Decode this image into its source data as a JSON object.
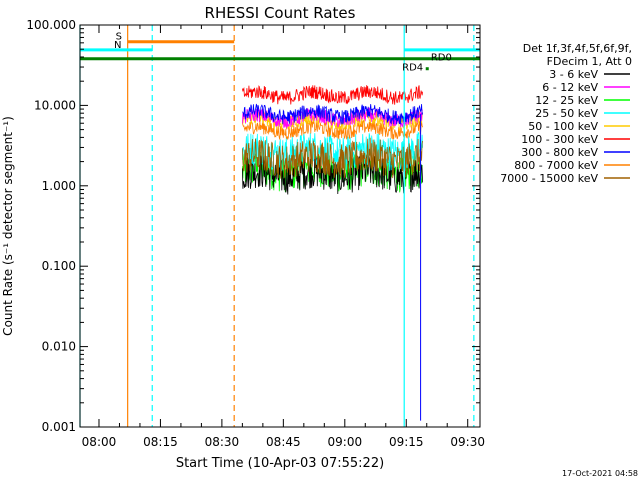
{
  "chart_data": {
    "type": "line",
    "title": "RHESSI Count Rates",
    "xlabel": "Start Time (10-Apr-03 07:55:22)",
    "ylabel": "Count Rate (s⁻¹ detector segment⁻¹)",
    "yscale": "log",
    "ylim": [
      0.001,
      100
    ],
    "xlim": [
      "07:55:22",
      "09:33:00"
    ],
    "x_ticks": [
      "08:00",
      "08:15",
      "08:30",
      "08:45",
      "09:00",
      "09:15",
      "09:30"
    ],
    "y_ticks": [
      "100.000",
      "10.000",
      "1.000",
      "0.100",
      "0.010",
      "0.001"
    ],
    "legend_header": [
      "Det 1f,3f,4f,5f,6f,9f,",
      "FDecim 1, Att 0"
    ],
    "legend_placement": "right",
    "series": [
      {
        "name": "3 - 6 keV",
        "color": "#000000",
        "level": 1.4,
        "start": "08:35:00",
        "end": "09:19:00"
      },
      {
        "name": "6 - 12 keV",
        "color": "#ff00ff",
        "level": 7.0,
        "start": "08:35:00",
        "end": "09:19:00"
      },
      {
        "name": "12 - 25 keV",
        "color": "#00ff00",
        "level": 1.5,
        "start": "08:35:00",
        "end": "09:19:00"
      },
      {
        "name": "25 - 50 keV",
        "color": "#00ffff",
        "level": 2.7,
        "start": "08:35:00",
        "end": "09:19:00"
      },
      {
        "name": "50 - 100 keV",
        "color": "#ffcc00",
        "level": 6.5,
        "start": "08:35:00",
        "end": "09:19:00"
      },
      {
        "name": "100 - 300 keV",
        "color": "#ff0000",
        "level": 13.5,
        "start": "08:35:00",
        "end": "09:19:00"
      },
      {
        "name": "300 - 800 keV",
        "color": "#0000ff",
        "level": 7.8,
        "start": "08:35:00",
        "end": "09:19:00"
      },
      {
        "name": "800 - 7000 keV",
        "color": "#ff8000",
        "level": 5.0,
        "start": "08:35:00",
        "end": "09:19:00"
      },
      {
        "name": "7000 - 15000 keV",
        "color": "#a06000",
        "level": 2.2,
        "start": "08:35:00",
        "end": "09:19:00"
      }
    ],
    "flag_bars": [
      {
        "label": "S",
        "color": "#ff8000",
        "y": 62,
        "start": "08:07:00",
        "end": "08:33:00"
      },
      {
        "label": "N",
        "color": "#00ffff",
        "y": 49,
        "start": "07:55:22",
        "end": "08:13:00"
      },
      {
        "label": "",
        "color": "#00ffff",
        "y": 49,
        "start": "09:14:30",
        "end": "09:33:00"
      },
      {
        "label": "",
        "color": "#008000",
        "y": 38,
        "start": "07:55:22",
        "end": "09:33:00"
      }
    ],
    "vertical_lines": [
      {
        "time": "08:07:00",
        "color": "#ff8000",
        "style": "solid"
      },
      {
        "time": "08:13:00",
        "color": "#00ffff",
        "style": "dashed"
      },
      {
        "time": "08:33:00",
        "color": "#ff8000",
        "style": "dashed"
      },
      {
        "time": "09:14:30",
        "color": "#00ffff",
        "style": "solid"
      },
      {
        "time": "09:31:30",
        "color": "#00ffff",
        "style": "dashed"
      },
      {
        "time": "07:55:22",
        "color": "#00ffff",
        "style": "solid"
      }
    ],
    "annotations": [
      {
        "text": "RD4",
        "time": "09:14:00",
        "y": 27,
        "color": "#008000"
      },
      {
        "text": "RD0",
        "time": "09:21:00",
        "y": 36,
        "color": "#008000"
      }
    ],
    "footer_timestamp": "17-Oct-2021 04:58",
    "grid": false
  }
}
